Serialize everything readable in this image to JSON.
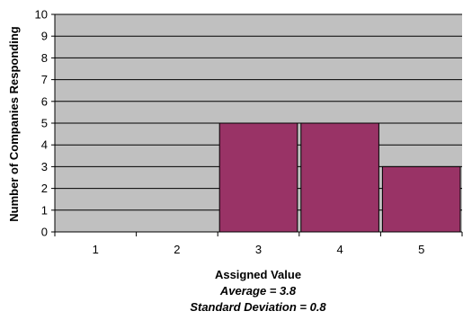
{
  "chart_data": {
    "type": "bar",
    "categories": [
      "1",
      "2",
      "3",
      "4",
      "5"
    ],
    "values": [
      0,
      0,
      5,
      5,
      3
    ],
    "xlabel": "Assigned Value",
    "ylabel": "Number of Companies Responding",
    "ylim": [
      0,
      10
    ],
    "yticks": [
      "0",
      "1",
      "2",
      "3",
      "4",
      "5",
      "6",
      "7",
      "8",
      "9",
      "10"
    ],
    "grid": true,
    "legend": "none",
    "bar_color": "#993366",
    "plot_background": "#c0c0c0",
    "annotations": [
      "Average = 3.8",
      "Standard Deviation = 0.8"
    ]
  }
}
